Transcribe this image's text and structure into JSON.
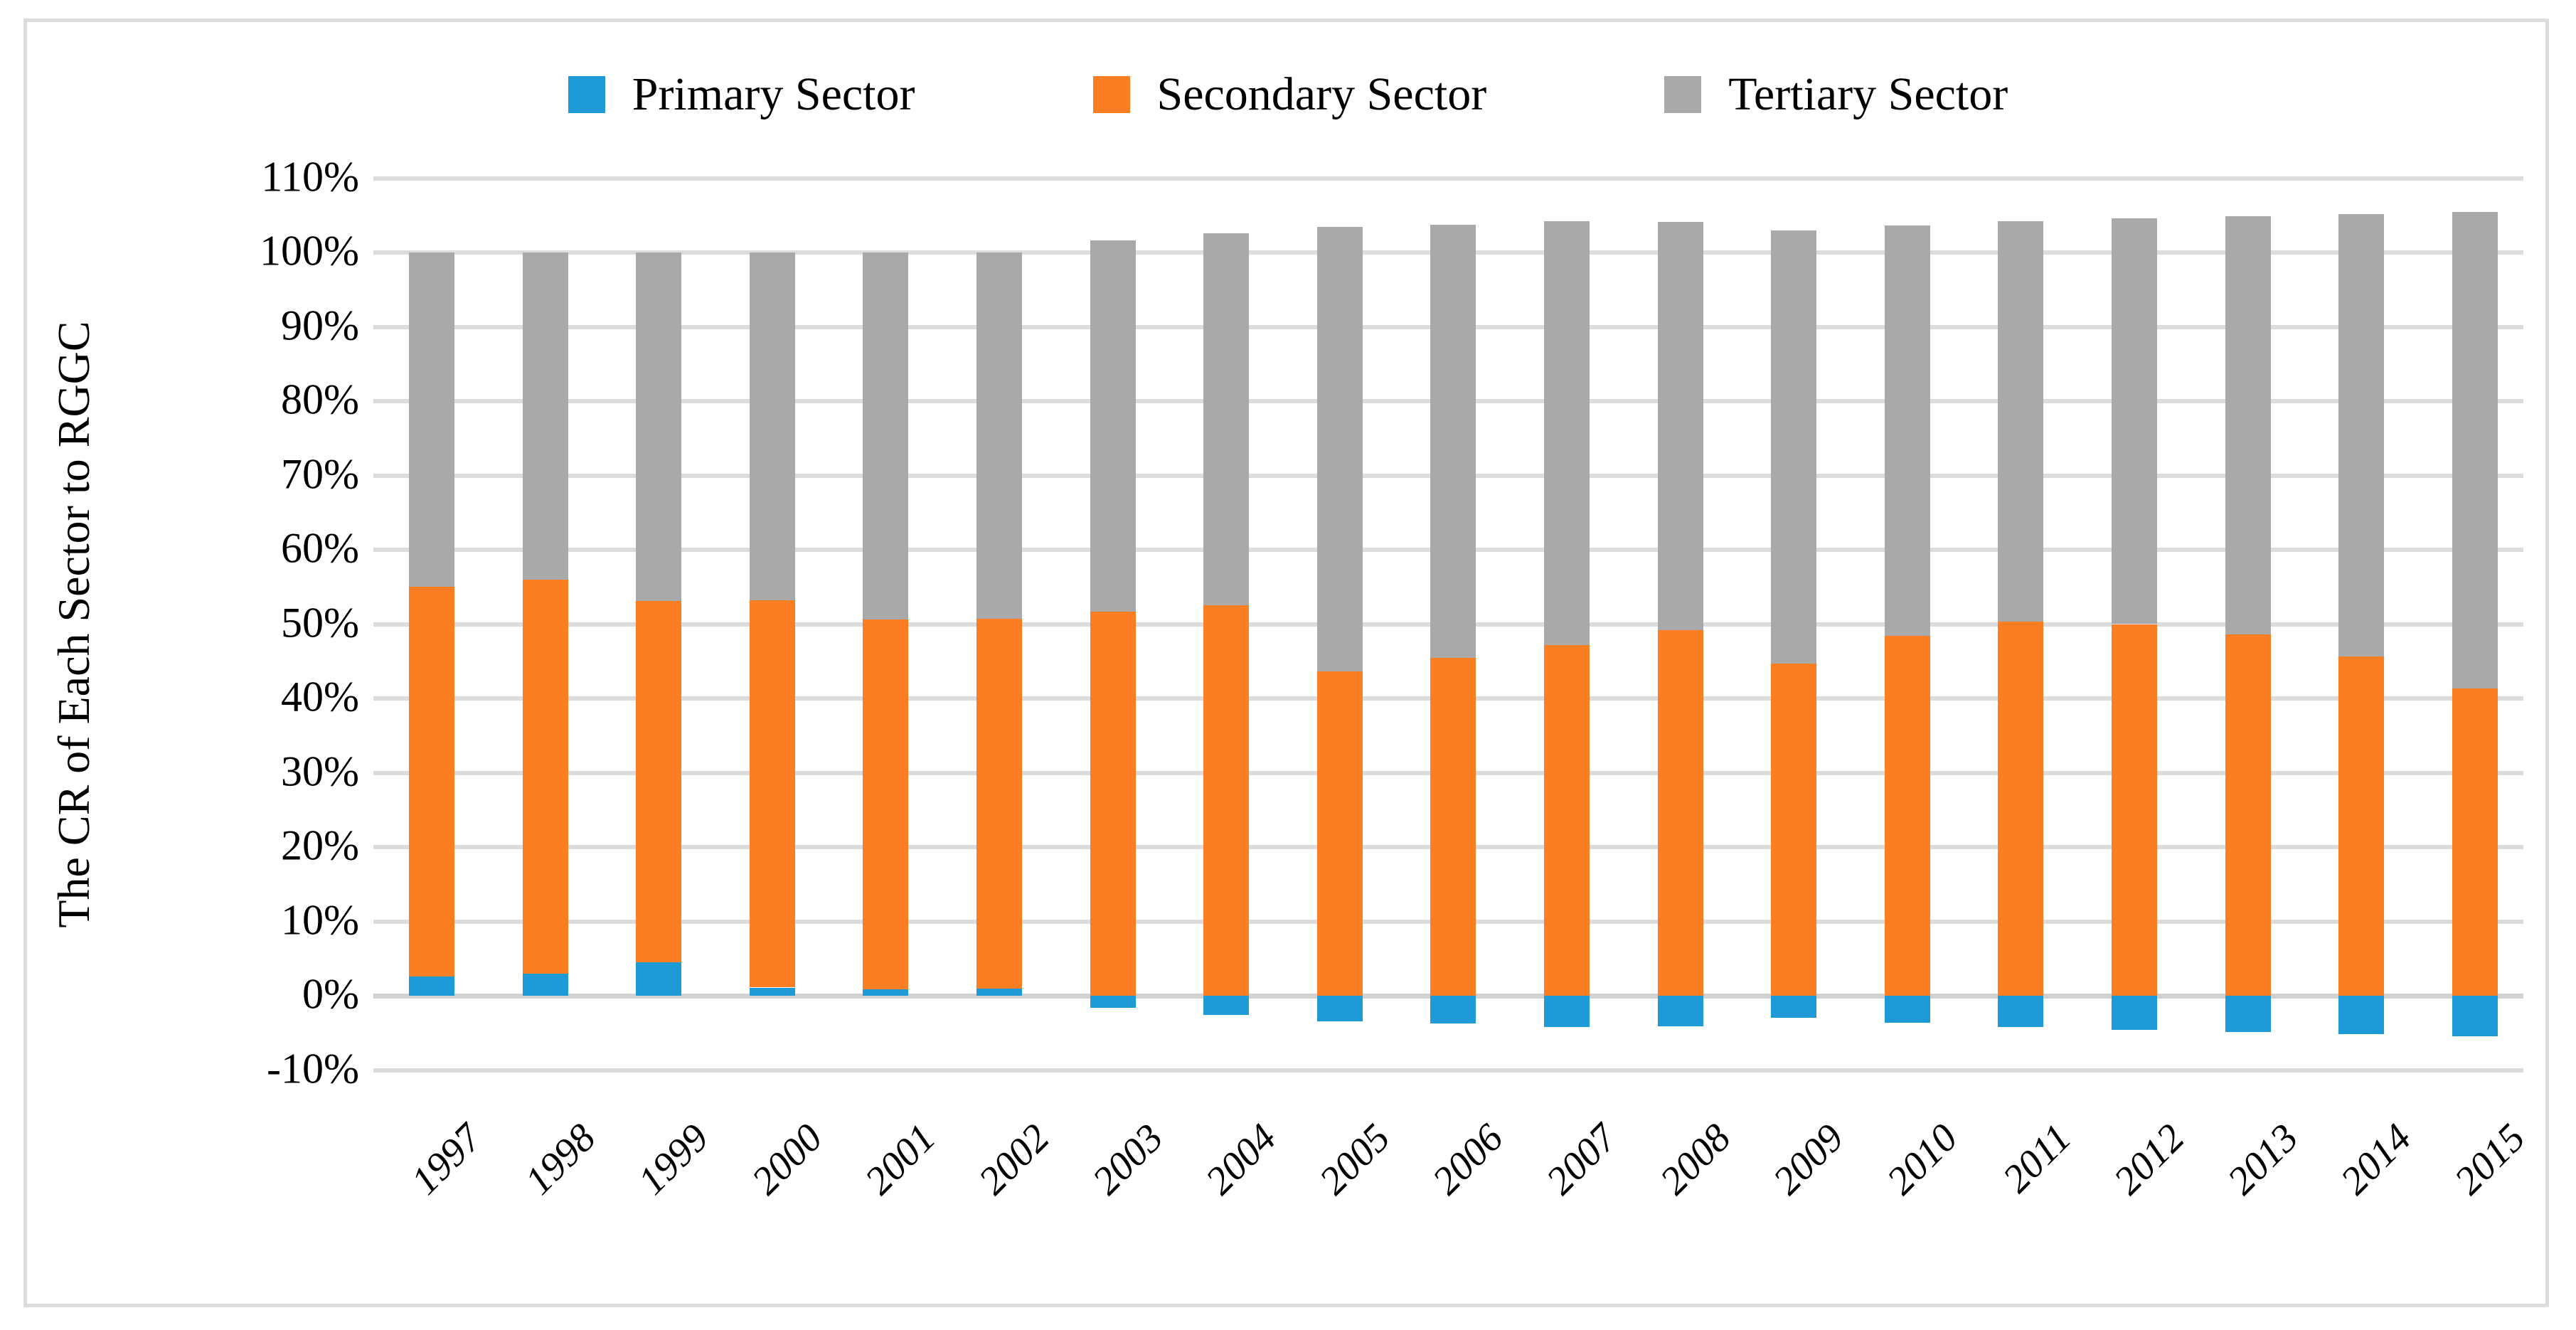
{
  "figure": {
    "background": "#ffffff",
    "frame_color": "#dcdcdc",
    "gridline_color": "#dcdcdc"
  },
  "legend": {
    "items": [
      {
        "label": "Primary Sector",
        "color": "#1e9bd7"
      },
      {
        "label": "Secondary Sector",
        "color": "#fc7e22"
      },
      {
        "label": "Tertiary Sector",
        "color": "#a9a9a9"
      }
    ]
  },
  "y_axis": {
    "title": "The CR of Each Sector to RGGC",
    "tick_labels": [
      "110%",
      "100%",
      "90%",
      "80%",
      "70%",
      "60%",
      "50%",
      "40%",
      "30%",
      "20%",
      "10%",
      "0%",
      "-10%"
    ],
    "max": 110,
    "min": -10,
    "step": 10
  },
  "chart_data": {
    "type": "bar",
    "stacked": true,
    "title": "",
    "xlabel": "",
    "ylabel": "The CR of Each Sector to RGGC",
    "ylim": [
      -10,
      110
    ],
    "grid": true,
    "legend_position": "top",
    "value_unit": "percent",
    "categories": [
      "1997",
      "1998",
      "1999",
      "2000",
      "2001",
      "2002",
      "2003",
      "2004",
      "2005",
      "2006",
      "2007",
      "2008",
      "2009",
      "2010",
      "2011",
      "2012",
      "2013",
      "2014",
      "2015"
    ],
    "series": [
      {
        "name": "Primary Sector",
        "color": "#1e9bd7",
        "values": [
          2.6,
          3.0,
          4.5,
          1.1,
          0.9,
          1.0,
          -1.6,
          -2.6,
          -3.4,
          -3.7,
          -4.2,
          -4.1,
          -3.0,
          -3.6,
          -4.2,
          -4.6,
          -4.9,
          -5.2,
          -5.5
        ]
      },
      {
        "name": "Secondary Sector",
        "color": "#fc7e22",
        "values": [
          52.4,
          53.0,
          48.6,
          52.1,
          49.7,
          49.7,
          51.7,
          52.5,
          43.6,
          45.5,
          47.2,
          49.2,
          44.7,
          48.4,
          50.3,
          50.0,
          48.6,
          45.6,
          41.3
        ]
      },
      {
        "name": "Tertiary Sector",
        "color": "#a9a9a9",
        "values": [
          45.0,
          44.0,
          46.9,
          46.8,
          49.4,
          49.3,
          49.9,
          50.1,
          59.8,
          58.2,
          57.0,
          54.9,
          58.3,
          55.2,
          53.9,
          54.6,
          56.3,
          59.6,
          64.2
        ]
      }
    ]
  }
}
